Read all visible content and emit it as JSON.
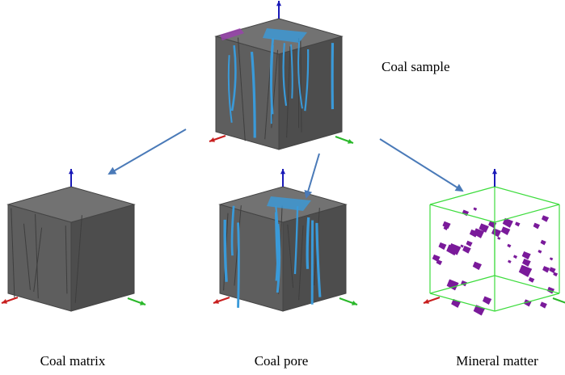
{
  "nodes": [
    {
      "label": "Coal sample"
    },
    {
      "label": "Coal matrix"
    },
    {
      "label": "Coal pore"
    },
    {
      "label": "Mineral matter"
    }
  ]
}
